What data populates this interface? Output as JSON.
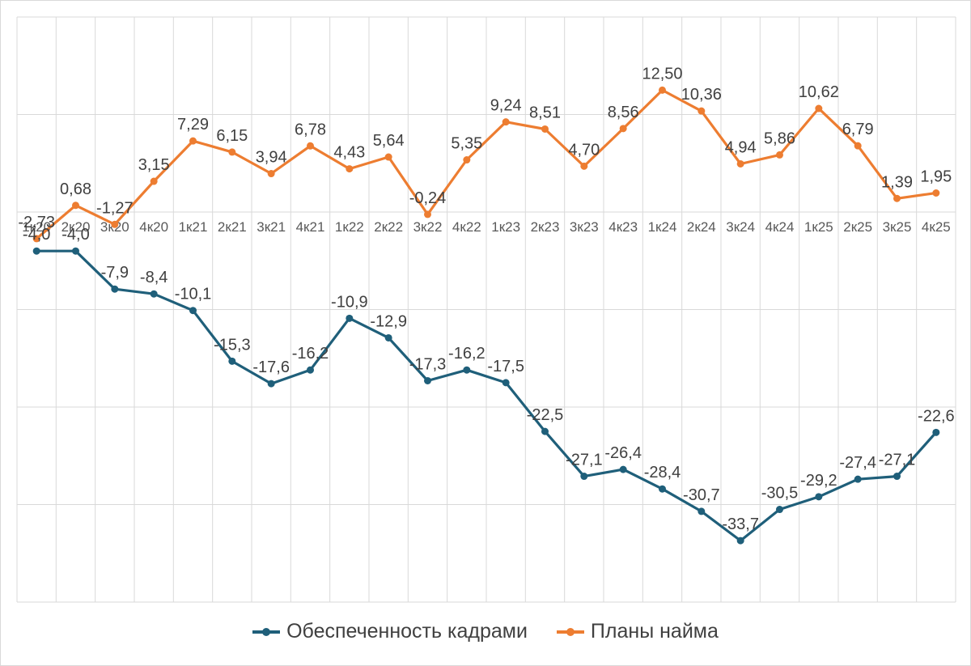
{
  "chart_data": {
    "type": "line",
    "title": "",
    "xlabel": "",
    "ylabel": "",
    "categories": [
      "1к20",
      "2к20",
      "3к20",
      "4к20",
      "1к21",
      "2к21",
      "3к21",
      "4к21",
      "1к22",
      "2к22",
      "3к22",
      "4к22",
      "1к23",
      "2к23",
      "3к23",
      "4к23",
      "1к24",
      "2к24",
      "3к24",
      "4к24",
      "1к25",
      "2к25",
      "3к25",
      "4к25"
    ],
    "ylim": [
      -40,
      20
    ],
    "grid": true,
    "legend_position": "bottom",
    "series": [
      {
        "name": "Обеспеченность кадрами",
        "color": "#1f5f7a",
        "values": [
          -4.0,
          -4.0,
          -7.9,
          -8.4,
          -10.1,
          -15.3,
          -17.6,
          -16.2,
          -10.9,
          -12.9,
          -17.3,
          -16.2,
          -17.5,
          -22.5,
          -27.1,
          -26.4,
          -28.4,
          -30.7,
          -33.7,
          -30.5,
          -29.2,
          -27.4,
          -27.1,
          -22.6
        ],
        "labels": [
          "-4,0",
          "-4,0",
          "-7,9",
          "-8,4",
          "-10,1",
          "-15,3",
          "-17,6",
          "-16,2",
          "-10,9",
          "-12,9",
          "-17,3",
          "-16,2",
          "-17,5",
          "-22,5",
          "-27,1",
          "-26,4",
          "-28,4",
          "-30,7",
          "-33,7",
          "-30,5",
          "-29,2",
          "-27,4",
          "-27,1",
          "-22,6"
        ]
      },
      {
        "name": "Планы найма",
        "color": "#ed7d31",
        "values": [
          -2.73,
          0.68,
          -1.27,
          3.15,
          7.29,
          6.15,
          3.94,
          6.78,
          4.43,
          5.64,
          -0.24,
          5.35,
          9.24,
          8.51,
          4.7,
          8.56,
          12.5,
          10.36,
          4.94,
          5.86,
          10.62,
          6.79,
          1.39,
          1.95
        ],
        "labels": [
          "-2,73",
          "0,68",
          "-1,27",
          "3,15",
          "7,29",
          "6,15",
          "3,94",
          "6,78",
          "4,43",
          "5,64",
          "-0,24",
          "5,35",
          "9,24",
          "8,51",
          "4,70",
          "8,56",
          "12,50",
          "10,36",
          "4,94",
          "5,86",
          "10,62",
          "6,79",
          "1,39",
          "1,95"
        ]
      }
    ]
  }
}
